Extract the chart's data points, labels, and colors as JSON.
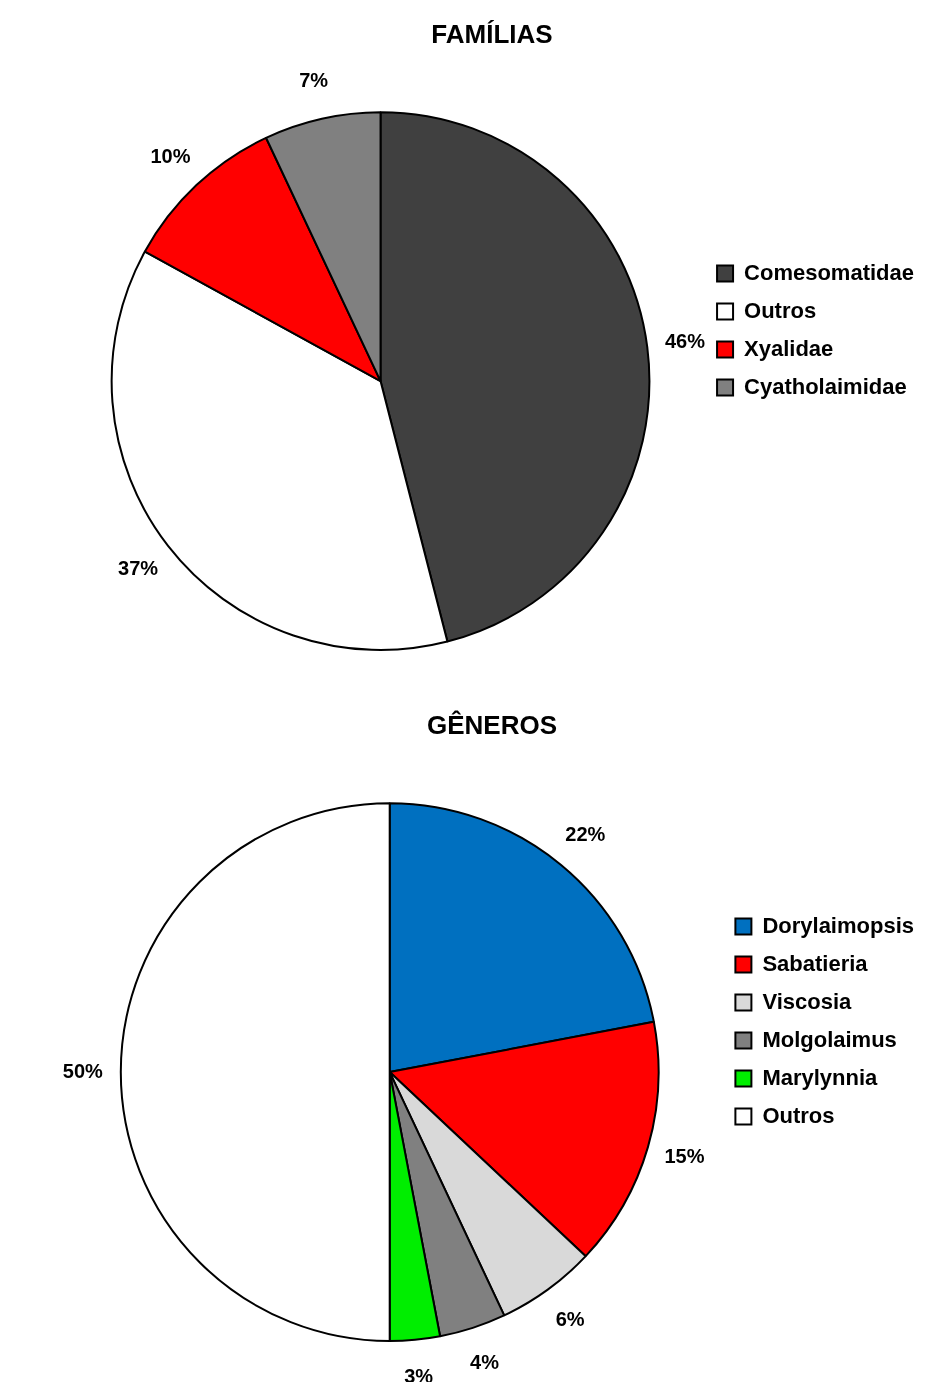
{
  "chart_data": [
    {
      "type": "pie",
      "title": "FAMÍLIAS",
      "categories": [
        "Comesomatidae",
        "Outros",
        "Xyalidae",
        "Cyatholaimidae"
      ],
      "values": [
        46,
        37,
        10,
        7
      ],
      "colors": [
        "#404040",
        "#ffffff",
        "#ff0000",
        "#808080"
      ],
      "value_labels": [
        "46%",
        "37%",
        "10%",
        "7%"
      ],
      "legend": "right"
    },
    {
      "type": "pie",
      "title": "GÊNEROS",
      "categories": [
        "Dorylaimopsis",
        "Sabatieria",
        "Viscosia",
        "Molgolaimus",
        "Marylynnia",
        "Outros"
      ],
      "values": [
        22,
        15,
        6,
        4,
        3,
        50
      ],
      "colors": [
        "#0070c0",
        "#ff0000",
        "#d9d9d9",
        "#808080",
        "#00ee00",
        "#ffffff"
      ],
      "value_labels": [
        "22%",
        "15%",
        "6%",
        "4%",
        "3%",
        "50%"
      ],
      "legend": "right"
    }
  ]
}
